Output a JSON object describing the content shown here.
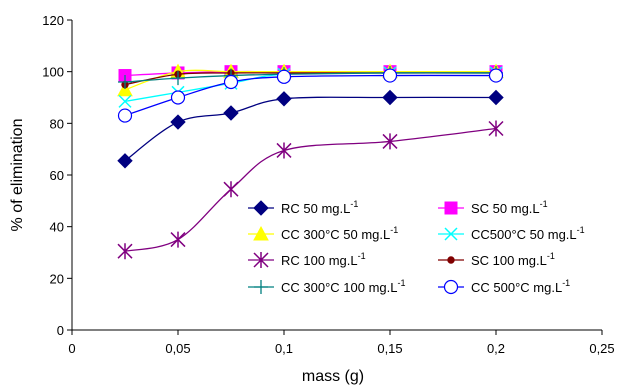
{
  "chart_data": {
    "type": "line",
    "title": "",
    "xlabel": "mass (g)",
    "ylabel": "% of elimination",
    "xlim": [
      0,
      0.25
    ],
    "ylim": [
      0,
      120
    ],
    "x_ticks": [
      {
        "value": 0,
        "label": "0"
      },
      {
        "value": 0.05,
        "label": "0,05"
      },
      {
        "value": 0.1,
        "label": "0,1"
      },
      {
        "value": 0.15,
        "label": "0,15"
      },
      {
        "value": 0.2,
        "label": "0,2"
      },
      {
        "value": 0.25,
        "label": "0,25"
      }
    ],
    "y_ticks": [
      {
        "value": 0,
        "label": "0"
      },
      {
        "value": 20,
        "label": "20"
      },
      {
        "value": 40,
        "label": "40"
      },
      {
        "value": 60,
        "label": "60"
      },
      {
        "value": 80,
        "label": "80"
      },
      {
        "value": 100,
        "label": "100"
      },
      {
        "value": 120,
        "label": "120"
      }
    ],
    "grid": false,
    "legend_position": "center-right, inside plot",
    "x": [
      0.025,
      0.05,
      0.075,
      0.1,
      0.15,
      0.2
    ],
    "series": [
      {
        "name": "RC 50 mg.L",
        "sup": "-1",
        "color": "#000080",
        "marker": "diamond",
        "values": [
          65.5,
          80.5,
          84,
          89.5,
          90,
          90
        ]
      },
      {
        "name": "SC 50 mg.L",
        "sup": "-1",
        "color": "#ff00ff",
        "marker": "square",
        "values": [
          98.5,
          99.5,
          100,
          100,
          100,
          100
        ]
      },
      {
        "name": "CC 300°C 50 mg.L",
        "sup": "-1",
        "color": "#ffff00",
        "marker": "triangle",
        "values": [
          93,
          100,
          100,
          100,
          100,
          100
        ]
      },
      {
        "name": "CC500°C 50 mg.L",
        "sup": "-1",
        "color": "#00ffff",
        "marker": "x",
        "values": [
          88.5,
          92,
          95.5,
          99,
          99.5,
          99.5
        ]
      },
      {
        "name": "RC 100 mg.L",
        "sup": "-1",
        "color": "#800080",
        "marker": "asterisk",
        "values": [
          30.5,
          35,
          54.5,
          69.5,
          73,
          78
        ]
      },
      {
        "name": "SC 100 mg.L",
        "sup": "-1",
        "color": "#800000",
        "marker": "dot",
        "values": [
          95,
          99,
          99.5,
          99.5,
          99.5,
          99.5
        ]
      },
      {
        "name": "CC 300°C 100 mg.L",
        "sup": "-1",
        "color": "#008080",
        "marker": "plus",
        "values": [
          96,
          97.5,
          98.5,
          99,
          99.5,
          99.5
        ]
      },
      {
        "name": "CC 500°C mg.L",
        "sup": "-1",
        "color": "#0000ff",
        "marker": "circle",
        "values": [
          83,
          90,
          96,
          98,
          98.5,
          98.5
        ]
      }
    ]
  }
}
